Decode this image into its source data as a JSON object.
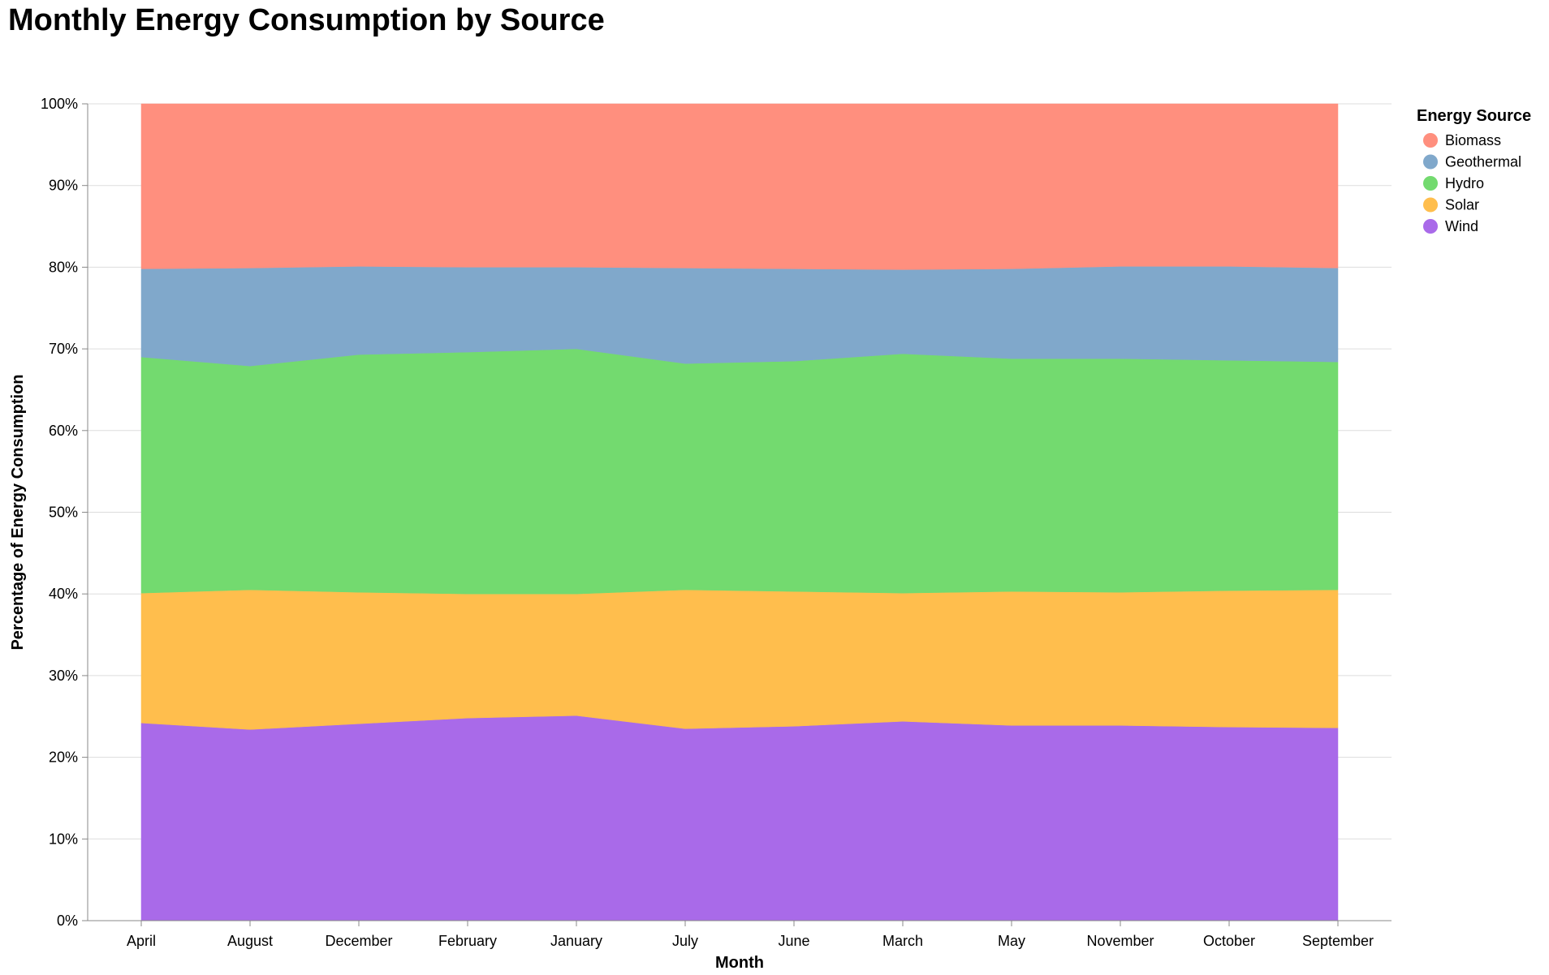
{
  "chart_data": {
    "type": "area",
    "stacked": "normalize",
    "title": "Monthly Energy Consumption by Source",
    "xlabel": "Month",
    "ylabel": "Percentage of Energy Consumption",
    "categories": [
      "April",
      "August",
      "December",
      "February",
      "January",
      "July",
      "June",
      "March",
      "May",
      "November",
      "October",
      "September"
    ],
    "y_ticks": [
      "0%",
      "10%",
      "20%",
      "30%",
      "40%",
      "50%",
      "60%",
      "70%",
      "80%",
      "90%",
      "100%"
    ],
    "ylim": [
      0,
      100
    ],
    "grid": true,
    "legend_title": "Energy Source",
    "legend_position": "right",
    "series": [
      {
        "name": "Wind",
        "color": "#a96ae9",
        "values": [
          24.2,
          23.4,
          24.1,
          24.8,
          25.1,
          23.5,
          23.8,
          24.4,
          23.9,
          23.9,
          23.7,
          23.6
        ]
      },
      {
        "name": "Solar",
        "color": "#ffbe4d",
        "values": [
          15.9,
          17.1,
          16.1,
          15.2,
          14.9,
          17.0,
          16.5,
          15.7,
          16.4,
          16.3,
          16.7,
          16.9
        ]
      },
      {
        "name": "Hydro",
        "color": "#73da6f",
        "values": [
          28.9,
          27.4,
          29.1,
          29.6,
          30.0,
          27.7,
          28.2,
          29.3,
          28.5,
          28.6,
          28.2,
          27.9
        ]
      },
      {
        "name": "Geothermal",
        "color": "#80a8cb",
        "values": [
          10.8,
          12.0,
          10.8,
          10.4,
          10.0,
          11.7,
          11.3,
          10.3,
          11.0,
          11.3,
          11.5,
          11.5
        ]
      },
      {
        "name": "Biomass",
        "color": "#ff8f7e",
        "values": [
          20.2,
          20.1,
          19.9,
          20.0,
          20.0,
          20.1,
          20.2,
          20.3,
          20.2,
          19.9,
          19.9,
          20.1
        ]
      }
    ],
    "legend_order": [
      "Biomass",
      "Geothermal",
      "Hydro",
      "Solar",
      "Wind"
    ]
  }
}
